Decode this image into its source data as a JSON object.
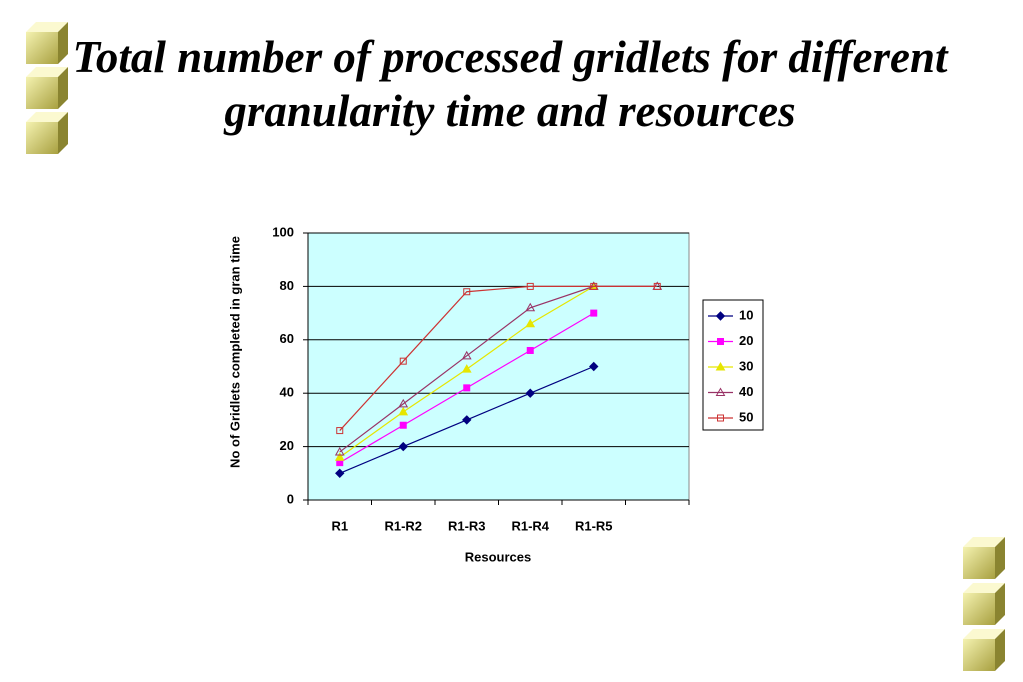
{
  "chart_data": {
    "type": "line",
    "title": "Total number of processed gridlets for different granularity time and resources",
    "x_label": "Resources",
    "y_label": "No of Gridlets completed in gran time",
    "categories": [
      "R1",
      "R1-R2",
      "R1-R3",
      "R1-R4",
      "R1-R5",
      null
    ],
    "series": [
      {
        "name": "10",
        "color": "#000080",
        "marker": "diamond",
        "values": [
          10,
          20,
          30,
          40,
          50,
          null
        ]
      },
      {
        "name": "20",
        "color": "#ff00ff",
        "marker": "square",
        "values": [
          14,
          28,
          42,
          56,
          70,
          null
        ]
      },
      {
        "name": "30",
        "color": "#e6e600",
        "marker": "triangle",
        "values": [
          16,
          33,
          49,
          66,
          80,
          null
        ]
      },
      {
        "name": "40",
        "color": "#993366",
        "marker": "triangle-open",
        "values": [
          18,
          36,
          54,
          72,
          80,
          80
        ]
      },
      {
        "name": "50",
        "color": "#cc3333",
        "marker": "square-open",
        "values": [
          26,
          52,
          78,
          80,
          80,
          80
        ]
      }
    ],
    "ylim": [
      0,
      100
    ],
    "yticks": [
      0,
      20,
      40,
      60,
      80,
      100
    ],
    "grid": true,
    "legend": "right"
  }
}
